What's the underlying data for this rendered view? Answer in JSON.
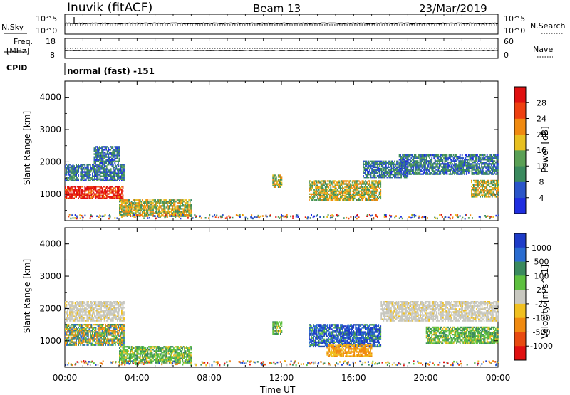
{
  "header": {
    "station": "Inuvik (fitACF)",
    "beam": "Beam 13",
    "date": "23/Mar/2019"
  },
  "panels": {
    "nsky_label": "N.Sky",
    "nsky_ticks": [
      "10^5",
      "10^0"
    ],
    "nsearch_label": "N.Search",
    "nsearch_ticks": [
      "10^5",
      "10^0"
    ],
    "freq_label_1": "Freq.",
    "freq_label_2": "[MHz]",
    "freq_ticks": [
      "18",
      "8"
    ],
    "nave_label": "Nave",
    "nave_ticks": [
      "60",
      "0"
    ],
    "cpid_label": "CPID",
    "cpid_text": "normal (fast) -151"
  },
  "chart_data": [
    {
      "type": "heatmap",
      "name": "power",
      "ylabel": "Slant Range [km]",
      "xlabel": "Time UT",
      "yticks": [
        "1000",
        "2000",
        "3000",
        "4000"
      ],
      "ylim": [
        180,
        4500
      ],
      "xlim": [
        0,
        24
      ],
      "xticks": [
        "00:00",
        "04:00",
        "08:00",
        "12:00",
        "16:00",
        "20:00",
        "00:00"
      ],
      "colorbar": {
        "label": "Power [dB]",
        "ticks": [
          "4",
          "8",
          "12",
          "16",
          "20",
          "24",
          "28"
        ],
        "colors": [
          "#1f2ee0",
          "#2a55c9",
          "#3a8a5e",
          "#5aa055",
          "#e8c020",
          "#f08a10",
          "#ee4010",
          "#e01010"
        ]
      },
      "regions": [
        {
          "t0": 0.0,
          "t1": 3.2,
          "r0": 850,
          "r1": 1250,
          "level": "high"
        },
        {
          "t0": 0.0,
          "t1": 3.3,
          "r0": 1400,
          "r1": 1900,
          "level": "low"
        },
        {
          "t0": 1.6,
          "t1": 3.0,
          "r0": 1950,
          "r1": 2450,
          "level": "low"
        },
        {
          "t0": 3.0,
          "t1": 7.0,
          "r0": 300,
          "r1": 800,
          "level": "mid"
        },
        {
          "t0": 11.5,
          "t1": 12.0,
          "r0": 1200,
          "r1": 1600,
          "level": "mid"
        },
        {
          "t0": 13.5,
          "t1": 17.5,
          "r0": 800,
          "r1": 1400,
          "level": "mid"
        },
        {
          "t0": 16.5,
          "t1": 19.0,
          "r0": 1500,
          "r1": 2000,
          "level": "low"
        },
        {
          "t0": 18.5,
          "t1": 24.0,
          "r0": 1600,
          "r1": 2200,
          "level": "low"
        },
        {
          "t0": 22.5,
          "t1": 24.0,
          "r0": 900,
          "r1": 1400,
          "level": "mid"
        }
      ]
    },
    {
      "type": "heatmap",
      "name": "velocity",
      "ylabel": "Slant Range [km]",
      "xlabel": "Time UT",
      "yticks": [
        "1000",
        "2000",
        "3000",
        "4000"
      ],
      "ylim": [
        180,
        4500
      ],
      "xlim": [
        0,
        24
      ],
      "xticks": [
        "00:00",
        "04:00",
        "08:00",
        "12:00",
        "16:00",
        "20:00",
        "00:00"
      ],
      "colorbar": {
        "label": "Velocity [m s^-1]",
        "ticks": [
          "1000",
          "500",
          "100",
          "25",
          "-25",
          "-100",
          "-500",
          "-1000"
        ],
        "colors": [
          "#1e3cc8",
          "#2a6cd0",
          "#3a8a5e",
          "#5ec040",
          "#c8c8c0",
          "#f0c020",
          "#f08a10",
          "#e84a10",
          "#e01010"
        ]
      },
      "regions": [
        {
          "t0": 0.0,
          "t1": 3.3,
          "r0": 850,
          "r1": 1500,
          "level": "mixed"
        },
        {
          "t0": 0.0,
          "t1": 3.3,
          "r0": 1600,
          "r1": 2200,
          "level": "gray"
        },
        {
          "t0": 3.0,
          "t1": 7.0,
          "r0": 300,
          "r1": 800,
          "level": "green"
        },
        {
          "t0": 11.5,
          "t1": 12.0,
          "r0": 1200,
          "r1": 1600,
          "level": "green"
        },
        {
          "t0": 13.5,
          "t1": 17.5,
          "r0": 800,
          "r1": 1500,
          "level": "blue"
        },
        {
          "t0": 14.5,
          "t1": 17.0,
          "r0": 500,
          "r1": 900,
          "level": "orange"
        },
        {
          "t0": 17.5,
          "t1": 24.0,
          "r0": 1600,
          "r1": 2200,
          "level": "gray"
        },
        {
          "t0": 20.0,
          "t1": 24.0,
          "r0": 900,
          "r1": 1400,
          "level": "green"
        }
      ]
    }
  ]
}
